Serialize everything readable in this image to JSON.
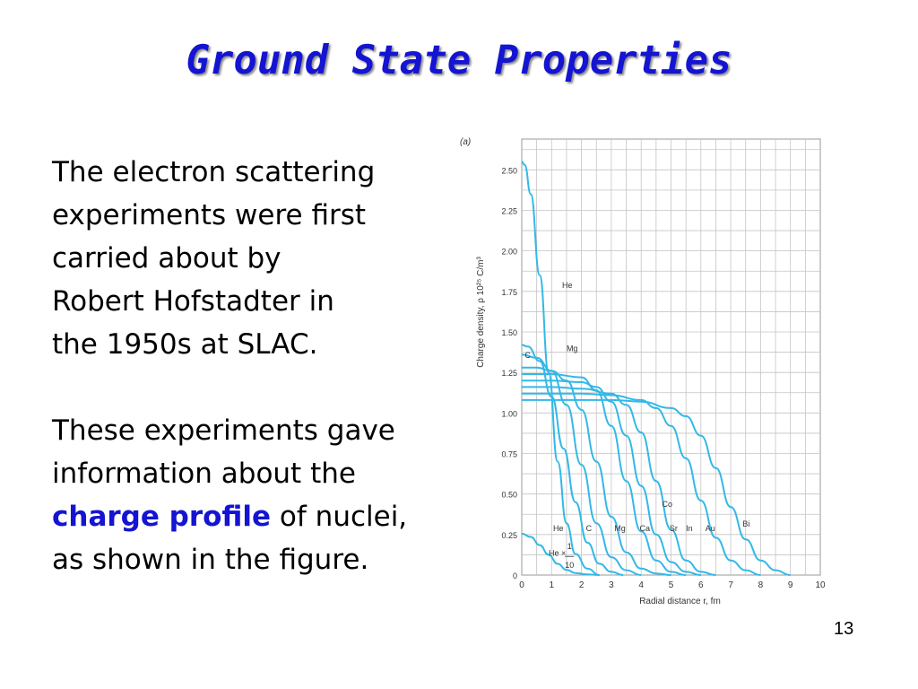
{
  "slide": {
    "title": "Ground State Properties",
    "page_number": "13",
    "para1": [
      "The electron scattering",
      "experiments were first",
      "carried about by",
      "Robert Hofstadter in",
      "the 1950s at SLAC."
    ],
    "para2": {
      "line1": "These experiments gave",
      "line2": "information about the",
      "highlight": "charge profile",
      "line3_rest": " of nuclei,",
      "line4": "as shown in the figure."
    }
  },
  "colors": {
    "title": "#1414d2",
    "curve": "#33b8e8",
    "grid": "#c4c4c4"
  },
  "chart_data": {
    "type": "line",
    "panel_label": "(a)",
    "xlabel": "Radial distance r, fm",
    "ylabel": "Charge density, ρ 10²⁵ C/m³",
    "xlim": [
      0,
      10
    ],
    "ylim": [
      0,
      2.6
    ],
    "x_ticks": [
      "0",
      "1",
      "2",
      "3",
      "4",
      "5",
      "6",
      "7",
      "8",
      "9",
      "10"
    ],
    "y_ticks": [
      "0",
      "0.25",
      "0.50",
      "0.75",
      "1.00",
      "1.25",
      "1.50",
      "1.75",
      "2.00",
      "2.25",
      "2.50"
    ],
    "grid": true,
    "series": [
      {
        "name": "He",
        "x": [
          0,
          0.1,
          0.3,
          0.6,
          0.9,
          1.2,
          1.5,
          1.8,
          2.2,
          2.6
        ],
        "y": [
          2.55,
          2.53,
          2.35,
          1.85,
          1.25,
          0.7,
          0.32,
          0.13,
          0.04,
          0.0
        ]
      },
      {
        "name": "He × 1/10",
        "x": [
          0,
          0.3,
          0.6,
          0.9,
          1.2,
          1.5,
          1.8,
          2.2,
          2.6
        ],
        "y": [
          0.255,
          0.235,
          0.185,
          0.125,
          0.07,
          0.032,
          0.013,
          0.004,
          0.0
        ]
      },
      {
        "name": "C",
        "x": [
          0,
          0.2,
          0.6,
          1.0,
          1.4,
          1.8,
          2.2,
          2.6,
          3.0,
          3.4
        ],
        "y": [
          1.42,
          1.41,
          1.32,
          1.1,
          0.78,
          0.45,
          0.2,
          0.07,
          0.02,
          0.0
        ]
      },
      {
        "name": "Mg",
        "x": [
          0,
          0.5,
          1.0,
          1.5,
          2.0,
          2.5,
          3.0,
          3.5,
          4.0
        ],
        "y": [
          1.36,
          1.34,
          1.26,
          1.05,
          0.68,
          0.32,
          0.11,
          0.03,
          0.0
        ]
      },
      {
        "name": "Ca",
        "x": [
          0,
          0.5,
          1.0,
          1.5,
          2.0,
          2.5,
          3.0,
          3.5,
          4.0,
          4.5,
          5.0
        ],
        "y": [
          1.28,
          1.28,
          1.26,
          1.2,
          1.02,
          0.7,
          0.36,
          0.14,
          0.04,
          0.01,
          0.0
        ]
      },
      {
        "name": "Co",
        "x": [
          0,
          1.0,
          2.0,
          2.5,
          3.0,
          3.5,
          4.0,
          4.5,
          5.0,
          5.5
        ],
        "y": [
          1.24,
          1.24,
          1.22,
          1.14,
          0.92,
          0.58,
          0.27,
          0.09,
          0.02,
          0.0
        ]
      },
      {
        "name": "Sr",
        "x": [
          0,
          1.0,
          2.0,
          2.5,
          3.0,
          3.5,
          4.0,
          4.5,
          5.0,
          5.5,
          6.0
        ],
        "y": [
          1.2,
          1.2,
          1.19,
          1.16,
          1.07,
          0.86,
          0.55,
          0.25,
          0.08,
          0.02,
          0.0
        ]
      },
      {
        "name": "In",
        "x": [
          0,
          1.0,
          2.0,
          3.0,
          3.5,
          4.0,
          4.5,
          5.0,
          5.5,
          6.0,
          6.5
        ],
        "y": [
          1.16,
          1.16,
          1.15,
          1.12,
          1.05,
          0.88,
          0.58,
          0.28,
          0.09,
          0.02,
          0.0
        ]
      },
      {
        "name": "Au",
        "x": [
          0,
          1.0,
          2.0,
          3.0,
          4.0,
          4.5,
          5.0,
          5.5,
          6.0,
          6.5,
          7.0,
          7.5,
          8.0
        ],
        "y": [
          1.12,
          1.12,
          1.12,
          1.11,
          1.08,
          1.03,
          0.92,
          0.72,
          0.46,
          0.23,
          0.09,
          0.03,
          0.0
        ]
      },
      {
        "name": "Bi",
        "x": [
          0,
          1.0,
          2.0,
          3.0,
          4.0,
          5.0,
          5.5,
          6.0,
          6.5,
          7.0,
          7.5,
          8.0,
          8.5,
          9.0
        ],
        "y": [
          1.08,
          1.08,
          1.08,
          1.08,
          1.07,
          1.03,
          0.98,
          0.86,
          0.66,
          0.42,
          0.22,
          0.09,
          0.03,
          0.0
        ]
      }
    ],
    "annotations": [
      {
        "text": "He",
        "x": 1.35,
        "y": 1.77
      },
      {
        "text": "C",
        "x": 0.1,
        "y": 1.34
      },
      {
        "text": "Mg",
        "x": 1.5,
        "y": 1.38
      },
      {
        "text": "He",
        "x": 1.05,
        "y": 0.27
      },
      {
        "text": "C",
        "x": 2.15,
        "y": 0.27
      },
      {
        "text": "Mg",
        "x": 3.1,
        "y": 0.27
      },
      {
        "text": "Ca",
        "x": 3.95,
        "y": 0.27
      },
      {
        "text": "Co",
        "x": 4.7,
        "y": 0.42
      },
      {
        "text": "Sr",
        "x": 4.95,
        "y": 0.27
      },
      {
        "text": "In",
        "x": 5.5,
        "y": 0.27
      },
      {
        "text": "Au",
        "x": 6.15,
        "y": 0.27
      },
      {
        "text": "Bi",
        "x": 7.4,
        "y": 0.3
      },
      {
        "text": "He ×",
        "x": 0.9,
        "y": 0.12
      }
    ],
    "fraction_note": {
      "numerator": "1",
      "denominator": "10"
    }
  }
}
